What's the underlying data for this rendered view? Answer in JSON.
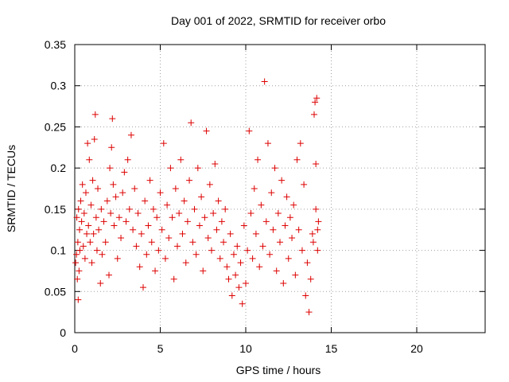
{
  "chart_data": {
    "type": "scatter",
    "title": "Day 001 of 2022, SRMTID for receiver orbo",
    "xlabel": "GPS time / hours",
    "ylabel": "SRMTID / TECUs",
    "xlim": [
      0,
      24
    ],
    "ylim": [
      0,
      0.35
    ],
    "x_ticks": [
      0,
      5,
      10,
      15,
      20
    ],
    "x_tick_labels": [
      "0",
      "5",
      "10",
      "15",
      "20"
    ],
    "y_ticks": [
      0,
      0.05,
      0.1,
      0.15,
      0.2,
      0.25,
      0.3,
      0.35
    ],
    "y_tick_labels": [
      "0",
      "0.05",
      "0.1",
      "0.15",
      "0.2",
      "0.25",
      "0.3",
      "0.35"
    ],
    "grid": true,
    "marker": "+",
    "color": "#dd0000",
    "series": [
      {
        "name": "SRMTID",
        "points": [
          [
            0.05,
            0.085
          ],
          [
            0.1,
            0.095
          ],
          [
            0.12,
            0.14
          ],
          [
            0.15,
            0.065
          ],
          [
            0.18,
            0.11
          ],
          [
            0.2,
            0.04
          ],
          [
            0.22,
            0.15
          ],
          [
            0.25,
            0.075
          ],
          [
            0.28,
            0.125
          ],
          [
            0.3,
            0.1
          ],
          [
            0.35,
            0.16
          ],
          [
            0.4,
            0.135
          ],
          [
            0.45,
            0.18
          ],
          [
            0.5,
            0.105
          ],
          [
            0.55,
            0.145
          ],
          [
            0.6,
            0.09
          ],
          [
            0.65,
            0.17
          ],
          [
            0.7,
            0.12
          ],
          [
            0.75,
            0.23
          ],
          [
            0.8,
            0.13
          ],
          [
            0.85,
            0.21
          ],
          [
            0.9,
            0.11
          ],
          [
            0.95,
            0.155
          ],
          [
            1.0,
            0.085
          ],
          [
            1.05,
            0.185
          ],
          [
            1.1,
            0.12
          ],
          [
            1.15,
            0.235
          ],
          [
            1.2,
            0.265
          ],
          [
            1.25,
            0.14
          ],
          [
            1.3,
            0.1
          ],
          [
            1.35,
            0.175
          ],
          [
            1.4,
            0.125
          ],
          [
            1.5,
            0.06
          ],
          [
            1.55,
            0.15
          ],
          [
            1.6,
            0.095
          ],
          [
            1.7,
            0.135
          ],
          [
            1.8,
            0.11
          ],
          [
            1.9,
            0.16
          ],
          [
            2.0,
            0.07
          ],
          [
            2.05,
            0.2
          ],
          [
            2.1,
            0.145
          ],
          [
            2.15,
            0.225
          ],
          [
            2.2,
            0.26
          ],
          [
            2.25,
            0.18
          ],
          [
            2.3,
            0.13
          ],
          [
            2.4,
            0.165
          ],
          [
            2.5,
            0.09
          ],
          [
            2.6,
            0.14
          ],
          [
            2.7,
            0.115
          ],
          [
            2.8,
            0.17
          ],
          [
            2.9,
            0.195
          ],
          [
            3.0,
            0.135
          ],
          [
            3.1,
            0.21
          ],
          [
            3.2,
            0.15
          ],
          [
            3.3,
            0.24
          ],
          [
            3.4,
            0.125
          ],
          [
            3.5,
            0.175
          ],
          [
            3.6,
            0.105
          ],
          [
            3.7,
            0.145
          ],
          [
            3.8,
            0.08
          ],
          [
            3.9,
            0.12
          ],
          [
            4.0,
            0.055
          ],
          [
            4.1,
            0.16
          ],
          [
            4.2,
            0.095
          ],
          [
            4.3,
            0.13
          ],
          [
            4.4,
            0.185
          ],
          [
            4.5,
            0.11
          ],
          [
            4.6,
            0.15
          ],
          [
            4.7,
            0.075
          ],
          [
            4.8,
            0.14
          ],
          [
            4.9,
            0.1
          ],
          [
            5.0,
            0.17
          ],
          [
            5.1,
            0.125
          ],
          [
            5.2,
            0.23
          ],
          [
            5.3,
            0.09
          ],
          [
            5.4,
            0.155
          ],
          [
            5.5,
            0.115
          ],
          [
            5.6,
            0.2
          ],
          [
            5.7,
            0.14
          ],
          [
            5.8,
            0.065
          ],
          [
            5.9,
            0.175
          ],
          [
            6.0,
            0.105
          ],
          [
            6.1,
            0.145
          ],
          [
            6.2,
            0.21
          ],
          [
            6.3,
            0.12
          ],
          [
            6.4,
            0.16
          ],
          [
            6.5,
            0.085
          ],
          [
            6.6,
            0.135
          ],
          [
            6.7,
            0.185
          ],
          [
            6.8,
            0.255
          ],
          [
            6.9,
            0.11
          ],
          [
            7.0,
            0.15
          ],
          [
            7.1,
            0.095
          ],
          [
            7.2,
            0.2
          ],
          [
            7.3,
            0.13
          ],
          [
            7.4,
            0.165
          ],
          [
            7.5,
            0.075
          ],
          [
            7.6,
            0.14
          ],
          [
            7.7,
            0.245
          ],
          [
            7.8,
            0.115
          ],
          [
            7.9,
            0.18
          ],
          [
            8.0,
            0.1
          ],
          [
            8.1,
            0.145
          ],
          [
            8.2,
            0.205
          ],
          [
            8.3,
            0.125
          ],
          [
            8.4,
            0.16
          ],
          [
            8.5,
            0.09
          ],
          [
            8.6,
            0.135
          ],
          [
            8.7,
            0.11
          ],
          [
            8.8,
            0.15
          ],
          [
            8.9,
            0.08
          ],
          [
            9.0,
            0.065
          ],
          [
            9.1,
            0.12
          ],
          [
            9.2,
            0.045
          ],
          [
            9.3,
            0.095
          ],
          [
            9.4,
            0.07
          ],
          [
            9.5,
            0.105
          ],
          [
            9.6,
            0.055
          ],
          [
            9.7,
            0.085
          ],
          [
            9.8,
            0.035
          ],
          [
            9.9,
            0.13
          ],
          [
            10.0,
            0.06
          ],
          [
            10.1,
            0.1
          ],
          [
            10.2,
            0.245
          ],
          [
            10.3,
            0.145
          ],
          [
            10.4,
            0.09
          ],
          [
            10.5,
            0.175
          ],
          [
            10.6,
            0.12
          ],
          [
            10.7,
            0.21
          ],
          [
            10.8,
            0.08
          ],
          [
            10.9,
            0.155
          ],
          [
            11.0,
            0.105
          ],
          [
            11.1,
            0.305
          ],
          [
            11.2,
            0.135
          ],
          [
            11.3,
            0.23
          ],
          [
            11.4,
            0.095
          ],
          [
            11.5,
            0.17
          ],
          [
            11.6,
            0.125
          ],
          [
            11.7,
            0.2
          ],
          [
            11.8,
            0.075
          ],
          [
            11.9,
            0.145
          ],
          [
            12.0,
            0.11
          ],
          [
            12.1,
            0.185
          ],
          [
            12.2,
            0.06
          ],
          [
            12.3,
            0.13
          ],
          [
            12.4,
            0.165
          ],
          [
            12.5,
            0.09
          ],
          [
            12.6,
            0.14
          ],
          [
            12.7,
            0.115
          ],
          [
            12.8,
            0.155
          ],
          [
            12.9,
            0.07
          ],
          [
            13.0,
            0.21
          ],
          [
            13.1,
            0.125
          ],
          [
            13.2,
            0.23
          ],
          [
            13.3,
            0.1
          ],
          [
            13.4,
            0.18
          ],
          [
            13.5,
            0.045
          ],
          [
            13.6,
            0.085
          ],
          [
            13.7,
            0.025
          ],
          [
            13.8,
            0.065
          ],
          [
            13.9,
            0.12
          ],
          [
            14.0,
            0.265
          ],
          [
            14.05,
            0.28
          ],
          [
            14.1,
            0.15
          ],
          [
            14.15,
            0.285
          ],
          [
            14.2,
            0.1
          ],
          [
            14.25,
            0.135
          ],
          [
            14.1,
            0.205
          ],
          [
            13.95,
            0.11
          ],
          [
            14.2,
            0.125
          ]
        ]
      }
    ]
  }
}
